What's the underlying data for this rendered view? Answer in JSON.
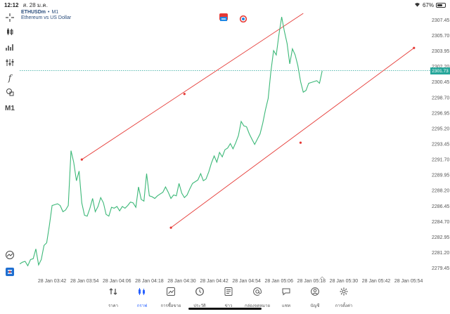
{
  "status": {
    "time": "12:12",
    "date": "ส. 28 ม.ค.",
    "battery_percent": "67%",
    "battery_level": 0.67
  },
  "symbol": {
    "name": "ETHUSDm",
    "separator": "•",
    "timeframe": "M1",
    "description": "Ethereum vs US Dollar"
  },
  "toolbar": {
    "timeframe_label": "M1",
    "icons": [
      "crosshair-icon",
      "candles-icon",
      "chart-type-icon",
      "indicators-icon",
      "function-icon",
      "objects-icon"
    ]
  },
  "last_price": "2301.73",
  "colors": {
    "line": "#3cb878",
    "trendline": "#e53935",
    "badge": "#26a69a",
    "active_nav": "#2962ff"
  },
  "nav": {
    "items": [
      {
        "label": "ราคา",
        "icon": "quotes-icon",
        "active": false
      },
      {
        "label": "กราฟ",
        "icon": "chart-icon",
        "active": true
      },
      {
        "label": "การซื้อขาย",
        "icon": "trade-icon",
        "active": false
      },
      {
        "label": "ประวัติ",
        "icon": "history-icon",
        "active": false
      },
      {
        "label": "ข่าว",
        "icon": "news-icon",
        "active": false
      },
      {
        "label": "กล่องจดหมาย",
        "icon": "mailbox-icon",
        "active": false
      },
      {
        "label": "แชท",
        "icon": "chat-icon",
        "active": false
      },
      {
        "label": "บัญชี",
        "icon": "account-icon",
        "active": false
      },
      {
        "label": "การตั้งค่า",
        "icon": "settings-icon",
        "active": false
      }
    ]
  },
  "chart_data": {
    "type": "line",
    "price_ticks": [
      "2307.45",
      "2305.70",
      "2303.95",
      "2302.20",
      "2300.45",
      "2298.70",
      "2296.95",
      "2295.20",
      "2293.45",
      "2291.70",
      "2289.95",
      "2288.20",
      "2286.45",
      "2284.70",
      "2282.95",
      "2281.20",
      "2279.45"
    ],
    "time_ticks": [
      "28 Jan 03:42",
      "28 Jan 03:54",
      "28 Jan 04:06",
      "28 Jan 04:18",
      "28 Jan 04:30",
      "28 Jan 04:42",
      "28 Jan 04:54",
      "28 Jan 05:06",
      "28 Jan 05:18",
      "28 Jan 05:30",
      "28 Jan 05:42",
      "28 Jan 05:54"
    ],
    "ylim": [
      2278.3,
      2308.6
    ],
    "x_minutes_range": [
      -18,
      133
    ],
    "series": [
      {
        "values": [
          [
            -18,
            2279.9
          ],
          [
            -17,
            2280.1
          ],
          [
            -16,
            2280.2
          ],
          [
            -15,
            2279.7
          ],
          [
            -14,
            2280.4
          ],
          [
            -13,
            2280.5
          ],
          [
            -12,
            2281.6
          ],
          [
            -11,
            2279.8
          ],
          [
            -10,
            2280.4
          ],
          [
            -9,
            2282.0
          ],
          [
            -8,
            2282.3
          ],
          [
            -7,
            2284.3
          ],
          [
            -6,
            2286.5
          ],
          [
            -5,
            2286.6
          ],
          [
            -4,
            2286.7
          ],
          [
            -3,
            2286.5
          ],
          [
            -2,
            2285.8
          ],
          [
            -1,
            2286.0
          ],
          [
            0,
            2286.5
          ],
          [
            1,
            2292.7
          ],
          [
            2,
            2291.4
          ],
          [
            3,
            2289.3
          ],
          [
            4,
            2290.4
          ],
          [
            5,
            2286.8
          ],
          [
            6,
            2285.4
          ],
          [
            7,
            2285.3
          ],
          [
            8,
            2286.2
          ],
          [
            9,
            2287.3
          ],
          [
            10,
            2285.8
          ],
          [
            11,
            2286.4
          ],
          [
            12,
            2287.4
          ],
          [
            13,
            2286.8
          ],
          [
            14,
            2285.5
          ],
          [
            15,
            2285.3
          ],
          [
            16,
            2286.3
          ],
          [
            17,
            2286.2
          ],
          [
            18,
            2286.4
          ],
          [
            19,
            2285.9
          ],
          [
            20,
            2286.4
          ],
          [
            21,
            2286.2
          ],
          [
            22,
            2286.5
          ],
          [
            23,
            2286.9
          ],
          [
            24,
            2286.8
          ],
          [
            25,
            2286.3
          ],
          [
            26,
            2288.6
          ],
          [
            27,
            2287.2
          ],
          [
            28,
            2287.0
          ],
          [
            29,
            2290.1
          ],
          [
            30,
            2287.6
          ],
          [
            31,
            2287.5
          ],
          [
            32,
            2287.3
          ],
          [
            33,
            2287.6
          ],
          [
            34,
            2287.8
          ],
          [
            35,
            2288.0
          ],
          [
            36,
            2288.6
          ],
          [
            37,
            2288.0
          ],
          [
            38,
            2287.3
          ],
          [
            39,
            2287.7
          ],
          [
            40,
            2287.6
          ],
          [
            41,
            2289.0
          ],
          [
            42,
            2287.9
          ],
          [
            43,
            2287.4
          ],
          [
            44,
            2287.7
          ],
          [
            45,
            2288.4
          ],
          [
            46,
            2289.0
          ],
          [
            47,
            2289.2
          ],
          [
            48,
            2289.4
          ],
          [
            49,
            2290.1
          ],
          [
            50,
            2289.3
          ],
          [
            51,
            2289.5
          ],
          [
            52,
            2290.3
          ],
          [
            53,
            2291.3
          ],
          [
            54,
            2292.1
          ],
          [
            55,
            2291.4
          ],
          [
            56,
            2292.5
          ],
          [
            57,
            2292.0
          ],
          [
            58,
            2292.8
          ],
          [
            59,
            2293.0
          ],
          [
            60,
            2293.5
          ],
          [
            61,
            2292.9
          ],
          [
            62,
            2293.6
          ],
          [
            63,
            2294.4
          ],
          [
            64,
            2296.0
          ],
          [
            65,
            2295.5
          ],
          [
            66,
            2295.4
          ],
          [
            67,
            2294.6
          ],
          [
            68,
            2294.0
          ],
          [
            69,
            2293.4
          ],
          [
            70,
            2294.0
          ],
          [
            71,
            2294.6
          ],
          [
            72,
            2295.8
          ],
          [
            73,
            2297.3
          ],
          [
            74,
            2298.6
          ],
          [
            75,
            2301.6
          ],
          [
            76,
            2304.0
          ],
          [
            77,
            2303.5
          ],
          [
            78,
            2305.8
          ],
          [
            79,
            2307.8
          ],
          [
            80,
            2306.2
          ],
          [
            81,
            2304.8
          ],
          [
            82,
            2302.5
          ],
          [
            83,
            2304.2
          ],
          [
            84,
            2303.5
          ],
          [
            85,
            2302.3
          ],
          [
            86,
            2300.5
          ],
          [
            87,
            2299.3
          ],
          [
            88,
            2299.5
          ],
          [
            89,
            2300.3
          ],
          [
            90,
            2300.4
          ],
          [
            91,
            2300.5
          ],
          [
            92,
            2300.6
          ],
          [
            93,
            2300.3
          ],
          [
            94,
            2301.7
          ]
        ]
      }
    ],
    "trendlines": [
      {
        "x1": 5,
        "y1": 2291.7,
        "x2": 87,
        "y2": 2308.2,
        "points": [
          [
            5,
            2291.7
          ],
          [
            43,
            2299.1
          ]
        ]
      },
      {
        "x1": 38,
        "y1": 2284.0,
        "x2": 128,
        "y2": 2304.3,
        "points": [
          [
            38,
            2284.0
          ],
          [
            86,
            2293.6
          ],
          [
            128,
            2304.3
          ]
        ]
      }
    ]
  }
}
